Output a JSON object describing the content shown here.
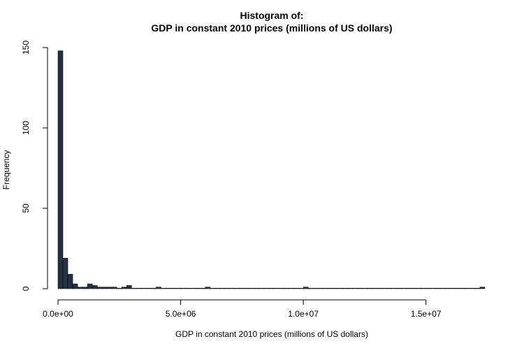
{
  "chart_data": {
    "type": "bar",
    "title_line1": "Histogram of:",
    "title_line2": "GDP in constant 2010 prices (millions of US dollars)",
    "xlabel": "GDP in constant 2010 prices (millions of US dollars)",
    "ylabel": "Frequency",
    "bin_width": 200000,
    "bin_start": 0,
    "counts": [
      148,
      19,
      9,
      3,
      1,
      1,
      3,
      2,
      1,
      1,
      1,
      1,
      0,
      1,
      2,
      0,
      0,
      0,
      0,
      0,
      1,
      0,
      0,
      0,
      0,
      0,
      0,
      0,
      0,
      0,
      1,
      0,
      0,
      0,
      0,
      0,
      0,
      0,
      0,
      0,
      0,
      0,
      0,
      0,
      0,
      0,
      0,
      0,
      0,
      0,
      1,
      0,
      0,
      0,
      0,
      0,
      0,
      0,
      0,
      0,
      0,
      0,
      0,
      0,
      0,
      0,
      0,
      0,
      0,
      0,
      0,
      0,
      0,
      0,
      0,
      0,
      0,
      0,
      0,
      0,
      0,
      0,
      0,
      0,
      0,
      0,
      1
    ],
    "xlim": [
      0,
      17400000
    ],
    "ylim": [
      0,
      150
    ],
    "x_ticks": [
      0,
      5000000,
      10000000,
      15000000
    ],
    "x_tick_labels": [
      "0.0e+00",
      "5.0e+06",
      "1.0e+07",
      "1.5e+07"
    ],
    "y_ticks": [
      0,
      50,
      100,
      150
    ],
    "y_tick_labels": [
      "0",
      "50",
      "100",
      "150"
    ],
    "bar_color": "#243142",
    "grid": false
  }
}
